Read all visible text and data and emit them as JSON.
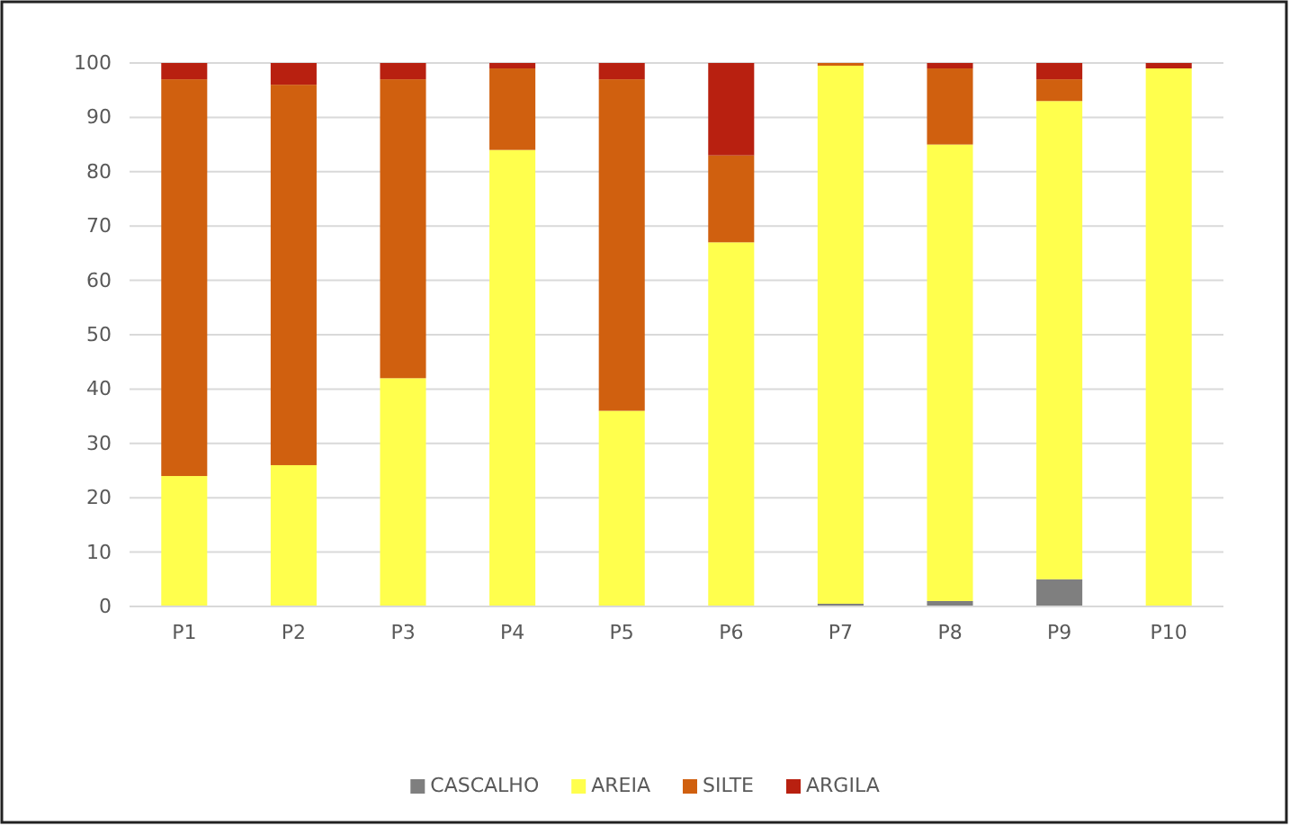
{
  "chart_data": {
    "type": "bar",
    "stacked": true,
    "categories": [
      "P1",
      "P2",
      "P3",
      "P4",
      "P5",
      "P6",
      "P7",
      "P8",
      "P9",
      "P10"
    ],
    "series": [
      {
        "name": "CASCALHO",
        "color": "#7f7f7f",
        "values": [
          0,
          0,
          0,
          0,
          0,
          0,
          0.5,
          1,
          5,
          0
        ]
      },
      {
        "name": "AREIA",
        "color": "#ffff4d",
        "values": [
          24,
          26,
          42,
          84,
          36,
          67,
          99,
          84,
          88,
          99
        ]
      },
      {
        "name": "SILTE",
        "color": "#d0600f",
        "values": [
          73,
          70,
          55,
          15,
          61,
          16,
          0.5,
          14,
          4,
          0
        ]
      },
      {
        "name": "ARGILA",
        "color": "#b82010",
        "values": [
          3,
          4,
          3,
          1,
          3,
          17,
          0,
          1,
          3,
          1
        ]
      }
    ],
    "ylim": [
      0,
      100
    ],
    "yticks": [
      0,
      10,
      20,
      30,
      40,
      50,
      60,
      70,
      80,
      90,
      100
    ],
    "grid": "y",
    "legend": "bottom"
  }
}
